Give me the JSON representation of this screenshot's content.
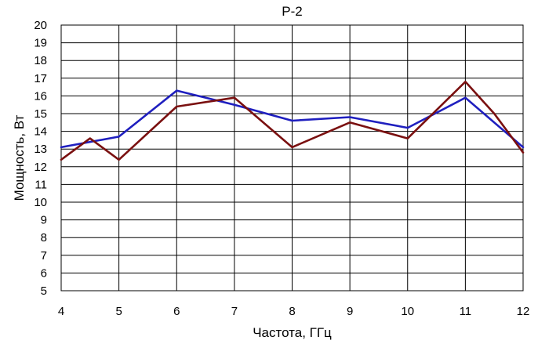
{
  "chart_data": {
    "type": "line",
    "title": "P-2",
    "xlabel": "Частота, ГГц",
    "ylabel": "Мощность, Вт",
    "xlim": [
      4,
      12
    ],
    "ylim": [
      5,
      20
    ],
    "x_ticks": [
      "4",
      "5",
      "6",
      "7",
      "8",
      "9",
      "10",
      "11",
      "12"
    ],
    "y_ticks": [
      "5",
      "6",
      "7",
      "8",
      "9",
      "10",
      "11",
      "12",
      "13",
      "14",
      "15",
      "16",
      "17",
      "18",
      "19",
      "20"
    ],
    "grid": true,
    "legend": "none",
    "series": [
      {
        "color": "#1f1fbf",
        "points": [
          [
            4,
            13.1
          ],
          [
            5,
            13.7
          ],
          [
            6,
            16.3
          ],
          [
            7,
            15.5
          ],
          [
            8,
            14.6
          ],
          [
            9,
            14.8
          ],
          [
            10,
            14.2
          ],
          [
            11,
            15.9
          ],
          [
            12,
            13.1
          ]
        ]
      },
      {
        "color": "#7a1010",
        "points": [
          [
            4,
            12.4
          ],
          [
            4.5,
            13.6
          ],
          [
            5,
            12.4
          ],
          [
            6,
            15.4
          ],
          [
            7,
            15.9
          ],
          [
            8,
            13.1
          ],
          [
            9,
            14.5
          ],
          [
            10,
            13.6
          ],
          [
            11,
            16.8
          ],
          [
            11.5,
            15.0
          ],
          [
            12,
            12.8
          ]
        ]
      }
    ]
  }
}
